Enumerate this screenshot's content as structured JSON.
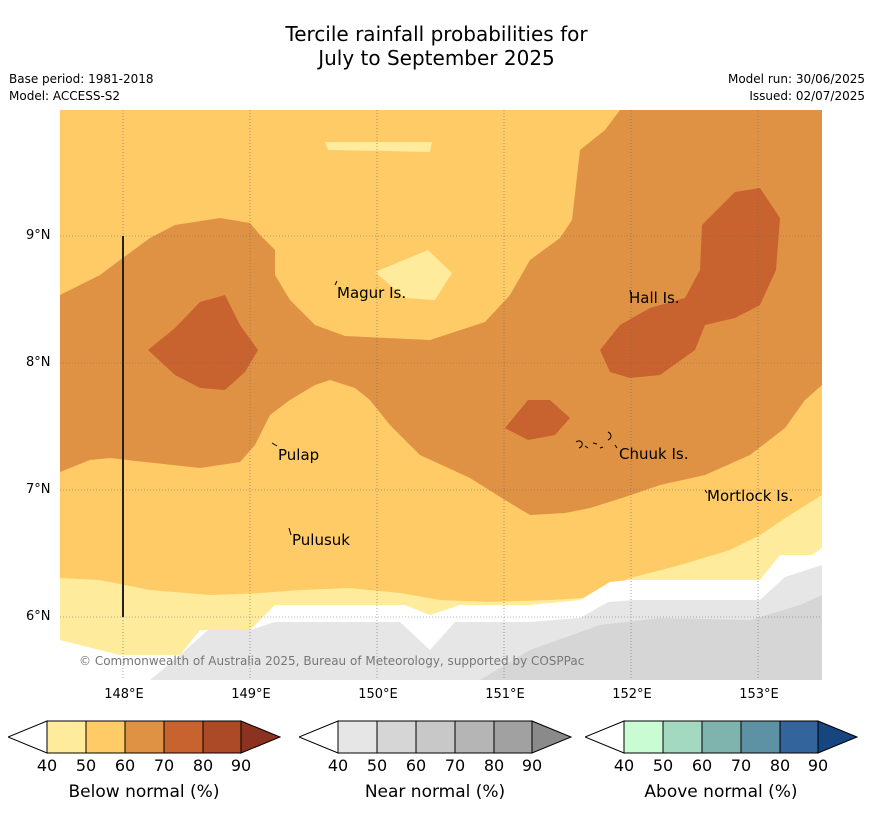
{
  "title_line1": "Tercile rainfall probabilities for",
  "title_line2": "July to September 2025",
  "base_period": "Base period: 1981-2018",
  "model": "Model: ACCESS-S2",
  "model_run": "Model run: 30/06/2025",
  "issued": "Issued: 02/07/2025",
  "lat_labels": [
    "9°N",
    "8°N",
    "7°N",
    "6°N"
  ],
  "lon_labels": [
    "148°E",
    "149°E",
    "150°E",
    "151°E",
    "152°E",
    "153°E"
  ],
  "places": {
    "magur": "Magur Is.",
    "hall": "Hall Is.",
    "pulap": "Pulap",
    "chuuk": "Chuuk Is.",
    "mortlock": "Mortlock Is.",
    "pulusuk": "Pulusuk"
  },
  "credit": "© Commonwealth of Australia 2025, Bureau of Meteorology, supported by COSPPac",
  "legends": [
    {
      "title": "Below normal (%)",
      "ticks": [
        "40",
        "50",
        "60",
        "70",
        "80",
        "90"
      ],
      "colors": [
        "#ffffff",
        "#feeb9c",
        "#fecb66",
        "#df9244",
        "#c8632f",
        "#ac4a28",
        "#8c3220"
      ]
    },
    {
      "title": "Near normal (%)",
      "ticks": [
        "40",
        "50",
        "60",
        "70",
        "80",
        "90"
      ],
      "colors": [
        "#ffffff",
        "#e6e6e6",
        "#d6d6d6",
        "#c8c8c8",
        "#b5b5b5",
        "#a1a1a1",
        "#8a8a8a"
      ]
    },
    {
      "title": "Above normal (%)",
      "ticks": [
        "40",
        "50",
        "60",
        "70",
        "80",
        "90"
      ],
      "colors": [
        "#ffffff",
        "#c9fcd2",
        "#a3d9c0",
        "#7fb3ad",
        "#5c92a3",
        "#33649b",
        "#16457f"
      ]
    }
  ],
  "map_colors": {
    "below_40_50": "#feeb9c",
    "below_50_60": "#fecb66",
    "below_60_70": "#df9244",
    "below_70_80": "#c8632f",
    "near_40_50": "#e6e6e6",
    "near_50_60": "#d6d6d6",
    "blank": "#ffffff"
  }
}
